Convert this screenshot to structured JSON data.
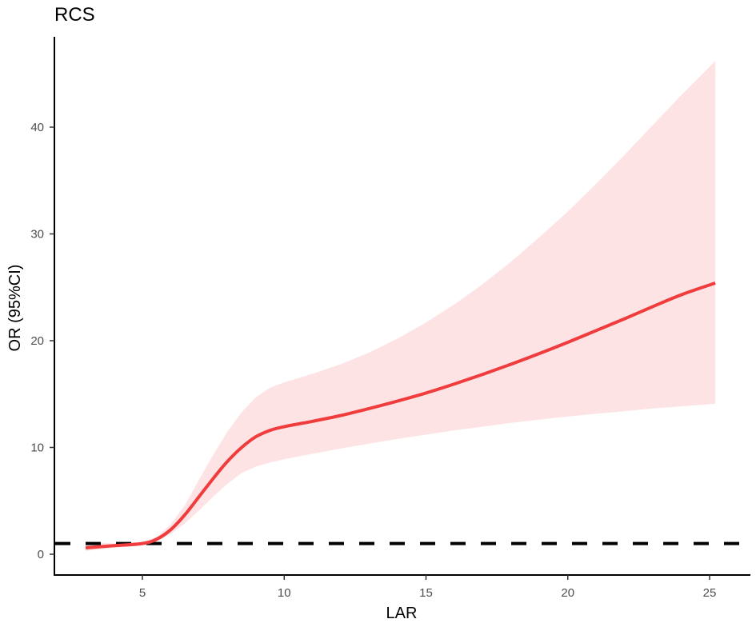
{
  "chart_data": {
    "type": "line",
    "title": "RCS",
    "xlabel": "LAR",
    "ylabel": "OR (95%CI)",
    "xlim": [
      2.0,
      26.5
    ],
    "ylim": [
      -2.0,
      48.5
    ],
    "x_ticks": [
      5,
      10,
      15,
      20,
      25
    ],
    "y_ticks": [
      0,
      10,
      20,
      30,
      40
    ],
    "grid": false,
    "legend": null,
    "reference_line": {
      "y": 1,
      "style": "dashed",
      "color": "#000000"
    },
    "series": [
      {
        "name": "OR",
        "color": "#f03c3c",
        "x": [
          3.0,
          4.0,
          5.0,
          5.5,
          6.0,
          6.5,
          7.0,
          7.5,
          8.0,
          8.5,
          9.0,
          9.5,
          10.0,
          10.5,
          11.0,
          12.0,
          13.0,
          14.0,
          15.0,
          16.0,
          17.0,
          18.0,
          19.0,
          20.0,
          21.0,
          22.0,
          23.0,
          24.0,
          25.2
        ],
        "values": [
          0.6,
          0.8,
          1.0,
          1.4,
          2.3,
          3.7,
          5.4,
          7.1,
          8.7,
          10.0,
          11.0,
          11.6,
          11.95,
          12.2,
          12.45,
          13.0,
          13.65,
          14.35,
          15.1,
          15.95,
          16.85,
          17.8,
          18.8,
          19.85,
          20.95,
          22.05,
          23.2,
          24.3,
          25.4
        ]
      }
    ],
    "ci_band": {
      "name": "95% CI",
      "color": "#fde3e4",
      "x": [
        3.0,
        4.0,
        5.0,
        5.5,
        6.0,
        6.5,
        7.0,
        7.5,
        8.0,
        8.5,
        9.0,
        9.5,
        10.0,
        10.5,
        11.0,
        12.0,
        13.0,
        14.0,
        15.0,
        16.0,
        17.0,
        18.0,
        19.0,
        20.0,
        21.0,
        22.0,
        23.0,
        24.0,
        25.2
      ],
      "lower": [
        0.3,
        0.6,
        0.9,
        1.2,
        1.9,
        2.9,
        4.1,
        5.4,
        6.6,
        7.6,
        8.2,
        8.6,
        8.9,
        9.15,
        9.4,
        9.9,
        10.35,
        10.8,
        11.2,
        11.6,
        11.95,
        12.3,
        12.6,
        12.9,
        13.15,
        13.4,
        13.65,
        13.85,
        14.1
      ],
      "upper": [
        1.2,
        1.0,
        1.15,
        1.6,
        2.8,
        4.6,
        7.0,
        9.3,
        11.5,
        13.3,
        14.7,
        15.6,
        16.1,
        16.5,
        16.9,
        17.8,
        18.9,
        20.2,
        21.7,
        23.4,
        25.3,
        27.4,
        29.7,
        32.1,
        34.7,
        37.4,
        40.2,
        43.0,
        46.2
      ]
    }
  }
}
